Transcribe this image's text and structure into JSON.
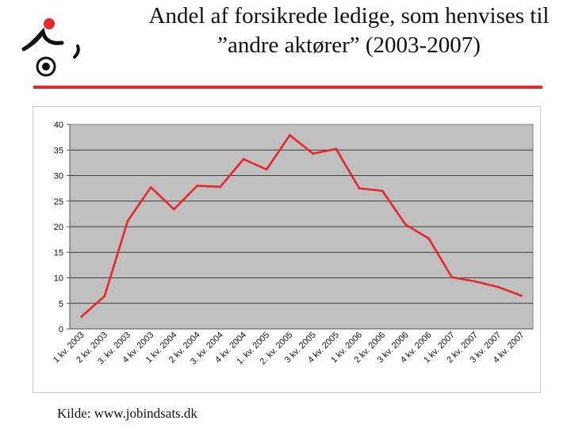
{
  "slide": {
    "title": "Andel af forsikrede ledige, som henvises til ”andre aktører” (2003-2007)",
    "source": "Kilde: www.jobindsats.dk",
    "logo_icon": "organization-logo",
    "accent_color": "#e8262b"
  },
  "chart_data": {
    "type": "line",
    "title": "",
    "xlabel": "",
    "ylabel": "",
    "categories": [
      "1 kv. 2003",
      "2 kv. 2003",
      "3. kv. 2003",
      "4 kv. 2003",
      "1 kv. 2004",
      "2 kv. 2004",
      "3. kv. 2004",
      "4 kv. 2004",
      "1. kv. 2005",
      "2. kv. 2005",
      "3 kv. 2005",
      "4 kv. 2005",
      "1 kv. 2006",
      "2 kv. 2006",
      "3 kv. 2006",
      "4 kv. 2006",
      "1 kv. 2007",
      "2 kv. 2007",
      "3 kv. 2007",
      "4 kv. 2007"
    ],
    "series": [
      {
        "values": [
          2.4,
          6.4,
          21.1,
          27.7,
          23.4,
          28.0,
          27.8,
          33.2,
          31.2,
          37.9,
          34.3,
          35.2,
          27.5,
          27.0,
          20.4,
          17.7,
          10.1,
          9.3,
          8.2,
          6.5
        ],
        "color": "#e8262b"
      }
    ],
    "yticks": [
      "0",
      "5",
      "10",
      "15",
      "20",
      "25",
      "30",
      "35",
      "40"
    ],
    "ylim": [
      0,
      40
    ],
    "grid": true,
    "plot_background": "#c0c0c0"
  }
}
